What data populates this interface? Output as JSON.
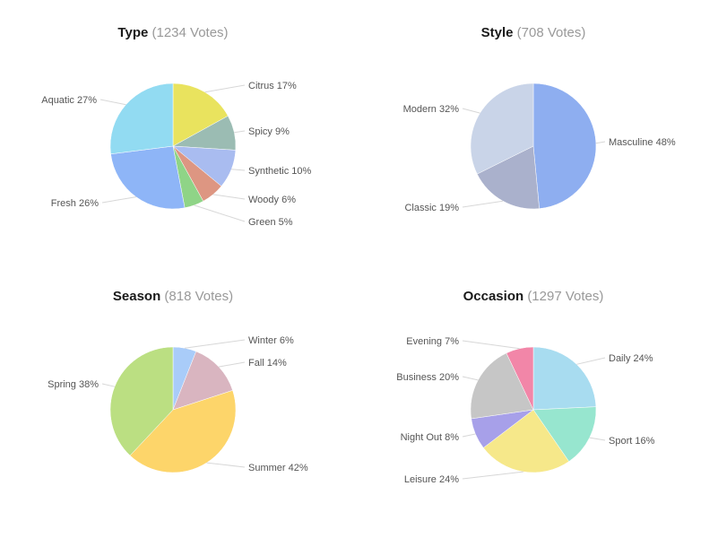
{
  "chart_data": [
    {
      "type": "pie",
      "title": "Type",
      "subtitle": "(1234 Votes)",
      "slices": [
        {
          "label": "Citrus 17%",
          "value": 17,
          "color": "#e9e35e"
        },
        {
          "label": "Spicy 9%",
          "value": 9,
          "color": "#9bbcb3"
        },
        {
          "label": "Synthetic 10%",
          "value": 10,
          "color": "#a9bcf0"
        },
        {
          "label": "Woody 6%",
          "value": 6,
          "color": "#dd9682"
        },
        {
          "label": "Green 5%",
          "value": 5,
          "color": "#8fd487"
        },
        {
          "label": "Fresh 26%",
          "value": 26,
          "color": "#8eb5f7"
        },
        {
          "label": "Aquatic 27%",
          "value": 27,
          "color": "#92dbf2"
        }
      ]
    },
    {
      "type": "pie",
      "title": "Style",
      "subtitle": "(708 Votes)",
      "slices": [
        {
          "label": "Masculine 48%",
          "value": 48,
          "color": "#8eaef0"
        },
        {
          "label": "Classic 19%",
          "value": 19,
          "color": "#aab1cc"
        },
        {
          "label": "Modern 32%",
          "value": 32,
          "color": "#c9d4e8"
        }
      ]
    },
    {
      "type": "pie",
      "title": "Season",
      "subtitle": "(818 Votes)",
      "slices": [
        {
          "label": "Winter 6%",
          "value": 6,
          "color": "#a9ccf9"
        },
        {
          "label": "Fall 14%",
          "value": 14,
          "color": "#d9b5c0"
        },
        {
          "label": "Summer 42%",
          "value": 42,
          "color": "#fdd56a"
        },
        {
          "label": "Spring 38%",
          "value": 38,
          "color": "#bbdf82"
        }
      ]
    },
    {
      "type": "pie",
      "title": "Occasion",
      "subtitle": "(1297 Votes)",
      "slices": [
        {
          "label": "Daily 24%",
          "value": 24,
          "color": "#a8dcf0"
        },
        {
          "label": "Sport 16%",
          "value": 16,
          "color": "#97e6cf"
        },
        {
          "label": "Leisure 24%",
          "value": 24,
          "color": "#f6e88a"
        },
        {
          "label": "Night Out 8%",
          "value": 8,
          "color": "#a7a0e9"
        },
        {
          "label": "Business 20%",
          "value": 20,
          "color": "#c6c6c6"
        },
        {
          "label": "Evening 7%",
          "value": 7,
          "color": "#f286a8"
        }
      ]
    }
  ]
}
